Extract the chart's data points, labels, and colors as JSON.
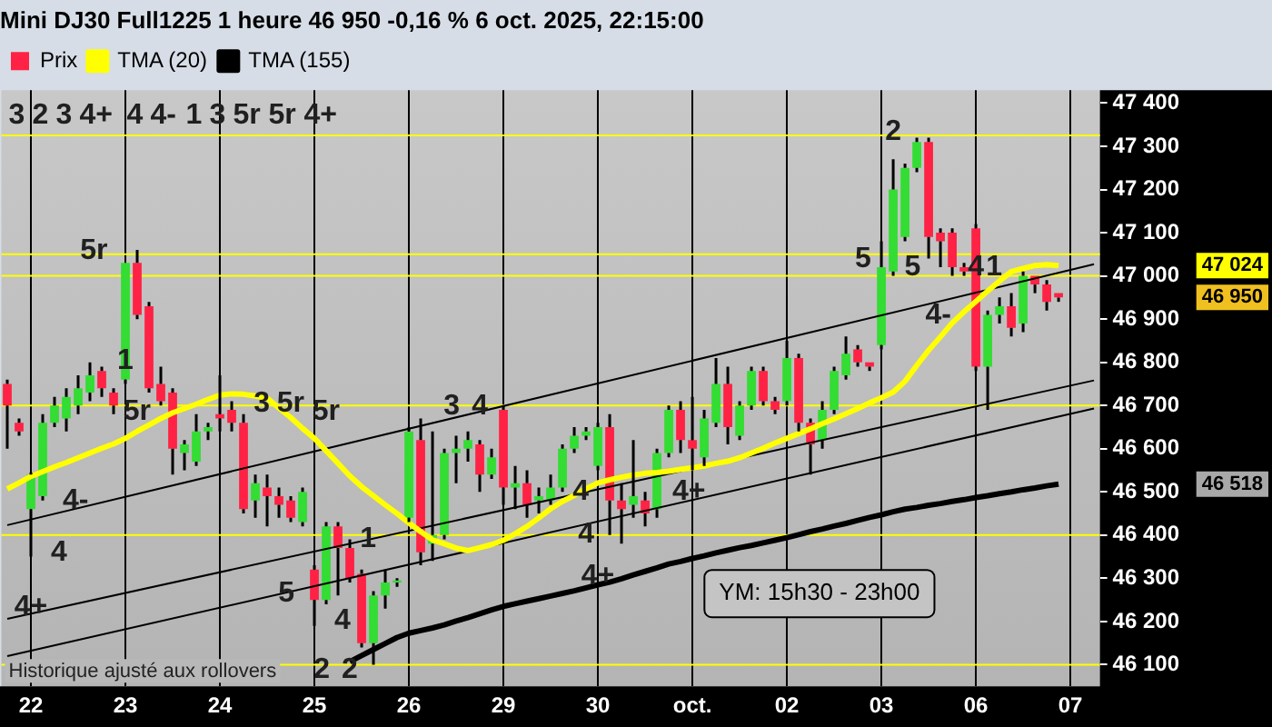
{
  "chart_data": {
    "type": "candlestick",
    "title": "Mini DJ30 Full1225 1 heure 46 950 -0,16 % 6 oct. 2025, 22:15:00",
    "categories": [
      null,
      null,
      "22",
      null,
      null,
      null,
      null,
      null,
      null,
      null,
      "23",
      null,
      null,
      null,
      null,
      null,
      null,
      null,
      "24",
      null,
      null,
      null,
      null,
      null,
      null,
      null,
      "25",
      null,
      null,
      null,
      null,
      null,
      null,
      null,
      "26",
      null,
      null,
      null,
      null,
      null,
      null,
      null,
      "29",
      null,
      null,
      null,
      null,
      null,
      null,
      null,
      "30",
      null,
      null,
      null,
      null,
      null,
      null,
      null,
      "oct.",
      null,
      null,
      null,
      null,
      null,
      null,
      null,
      "02",
      null,
      null,
      null,
      null,
      null,
      null,
      null,
      "03",
      null,
      null,
      null,
      null,
      null,
      null,
      null,
      "06",
      null,
      null,
      null,
      null,
      null,
      null,
      null,
      "07",
      null,
      null
    ],
    "ylim": [
      46050,
      47430
    ],
    "yticks": [
      {
        "value": 46100,
        "label": "46 100"
      },
      {
        "value": 46200,
        "label": "46 200"
      },
      {
        "value": 46300,
        "label": "46 300"
      },
      {
        "value": 46400,
        "label": "46 400"
      },
      {
        "value": 46500,
        "label": "46 500"
      },
      {
        "value": 46600,
        "label": "46 600"
      },
      {
        "value": 46700,
        "label": "46 700"
      },
      {
        "value": 46800,
        "label": "46 800"
      },
      {
        "value": 46900,
        "label": "46 900"
      },
      {
        "value": 47000,
        "label": "47 000"
      },
      {
        "value": 47100,
        "label": "47 100"
      },
      {
        "value": 47200,
        "label": "47 200"
      },
      {
        "value": 47300,
        "label": "47 300"
      },
      {
        "value": 47400,
        "label": "47 400"
      }
    ],
    "grid": "x",
    "legend": "top left",
    "series": [
      {
        "name": "Prix",
        "ohlc": [
          [
            46750,
            46760,
            46600,
            46700
          ],
          [
            46660,
            46670,
            46630,
            46640
          ],
          [
            46460,
            46545,
            46350,
            46540
          ],
          [
            46490,
            46680,
            46480,
            46660
          ],
          [
            46660,
            46720,
            46650,
            46700
          ],
          [
            46670,
            46740,
            46640,
            46720
          ],
          [
            46700,
            46770,
            46680,
            46740
          ],
          [
            46730,
            46800,
            46710,
            46770
          ],
          [
            46780,
            46790,
            46720,
            46740
          ],
          [
            46730,
            46740,
            46680,
            46700
          ],
          [
            46760,
            47030,
            46750,
            47030
          ],
          [
            47030,
            47060,
            46900,
            46910
          ],
          [
            46930,
            46940,
            46730,
            46740
          ],
          [
            46750,
            46790,
            46700,
            46710
          ],
          [
            46730,
            46740,
            46540,
            46600
          ],
          [
            46590,
            46620,
            46550,
            46610
          ],
          [
            46570,
            46680,
            46560,
            46640
          ],
          [
            46640,
            46660,
            46620,
            46650
          ],
          [
            46680,
            46770,
            46640,
            46670
          ],
          [
            46690,
            46710,
            46640,
            46660
          ],
          [
            46660,
            46680,
            46450,
            46460
          ],
          [
            46480,
            46540,
            46440,
            46520
          ],
          [
            46510,
            46540,
            46420,
            46490
          ],
          [
            46490,
            46510,
            46440,
            46470
          ],
          [
            46480,
            46490,
            46430,
            46440
          ],
          [
            46430,
            46510,
            46420,
            46500
          ],
          [
            46320,
            46330,
            46190,
            46250
          ],
          [
            46250,
            46430,
            46240,
            46420
          ],
          [
            46420,
            46430,
            46260,
            46370
          ],
          [
            46370,
            46390,
            46290,
            46300
          ],
          [
            46310,
            46320,
            46140,
            46150
          ],
          [
            46150,
            46270,
            46100,
            46260
          ],
          [
            46260,
            46320,
            46230,
            46290
          ],
          [
            46290,
            46300,
            46280,
            46295
          ],
          [
            46440,
            46650,
            46430,
            46640
          ],
          [
            46620,
            46670,
            46330,
            46360
          ],
          [
            46380,
            46640,
            46340,
            46400
          ],
          [
            46400,
            46600,
            46390,
            46590
          ],
          [
            46590,
            46630,
            46520,
            46600
          ],
          [
            46600,
            46640,
            46570,
            46620
          ],
          [
            46610,
            46620,
            46500,
            46540
          ],
          [
            46540,
            46600,
            46530,
            46580
          ],
          [
            46690,
            46700,
            46470,
            46510
          ],
          [
            46510,
            46560,
            46460,
            46520
          ],
          [
            46520,
            46550,
            46440,
            46470
          ],
          [
            46480,
            46510,
            46450,
            46490
          ],
          [
            46480,
            46540,
            46470,
            46510
          ],
          [
            46510,
            46610,
            46500,
            46600
          ],
          [
            46600,
            46650,
            46590,
            46630
          ],
          [
            46630,
            46650,
            46620,
            46640
          ],
          [
            46560,
            46660,
            46550,
            46650
          ],
          [
            46650,
            46680,
            46400,
            46480
          ],
          [
            46480,
            46520,
            46380,
            46460
          ],
          [
            46470,
            46620,
            46440,
            46490
          ],
          [
            46480,
            46500,
            46420,
            46450
          ],
          [
            46460,
            46600,
            46440,
            46590
          ],
          [
            46590,
            46700,
            46580,
            46690
          ],
          [
            46690,
            46710,
            46590,
            46620
          ],
          [
            46620,
            46720,
            46550,
            46600
          ],
          [
            46580,
            46690,
            46560,
            46670
          ],
          [
            46660,
            46810,
            46650,
            46750
          ],
          [
            46750,
            46790,
            46610,
            46650
          ],
          [
            46630,
            46710,
            46620,
            46700
          ],
          [
            46700,
            46790,
            46690,
            46780
          ],
          [
            46780,
            46790,
            46700,
            46710
          ],
          [
            46710,
            46720,
            46680,
            46690
          ],
          [
            46710,
            46850,
            46700,
            46810
          ],
          [
            46810,
            46820,
            46640,
            46660
          ],
          [
            46660,
            46670,
            46540,
            46610
          ],
          [
            46620,
            46710,
            46600,
            46690
          ],
          [
            46690,
            46790,
            46680,
            46780
          ],
          [
            46770,
            46860,
            46760,
            46820
          ],
          [
            46830,
            46840,
            46790,
            46800
          ],
          [
            46800,
            46800,
            46780,
            46790
          ],
          [
            46840,
            47080,
            46830,
            47020
          ],
          [
            47010,
            47270,
            47000,
            47200
          ],
          [
            47090,
            47260,
            47080,
            47250
          ],
          [
            47250,
            47320,
            47240,
            47310
          ],
          [
            47310,
            47320,
            47040,
            47090
          ],
          [
            47100,
            47110,
            47020,
            47080
          ],
          [
            47100,
            47110,
            47000,
            47020
          ],
          [
            47020,
            47030,
            47000,
            47010
          ],
          [
            47110,
            47120,
            46780,
            46790
          ],
          [
            46790,
            46920,
            46690,
            46910
          ],
          [
            46910,
            46950,
            46890,
            46930
          ],
          [
            46930,
            46960,
            46860,
            46880
          ],
          [
            46890,
            47010,
            46870,
            47000
          ],
          [
            47000,
            47000,
            46960,
            46980
          ],
          [
            46980,
            46990,
            46920,
            46940
          ],
          [
            46960,
            46960,
            46940,
            46950
          ],
          null,
          null,
          null
        ],
        "colors": [
          "#ff2244",
          "#ff2244",
          "#33dd33",
          "#33dd33",
          "#33dd33",
          "#33dd33",
          "#33dd33",
          "#33dd33",
          "#ff2244",
          "#ff2244",
          "#33dd33",
          "#ff2244",
          "#ff2244",
          "#ff2244",
          "#ff2244",
          "#33dd33",
          "#33dd33",
          "#33dd33",
          "#ff2244",
          "#ff2244",
          "#ff2244",
          "#33dd33",
          "#ff2244",
          "#ff2244",
          "#ff2244",
          "#33dd33",
          "#ff2244",
          "#33dd33",
          "#ff2244",
          "#ff2244",
          "#ff2244",
          "#33dd33",
          "#33dd33",
          "#33dd33",
          "#33dd33",
          "#ff2244",
          "#33dd33",
          "#33dd33",
          "#33dd33",
          "#33dd33",
          "#ff2244",
          "#33dd33",
          "#ff2244",
          "#33dd33",
          "#ff2244",
          "#33dd33",
          "#33dd33",
          "#33dd33",
          "#33dd33",
          "#33dd33",
          "#33dd33",
          "#ff2244",
          "#ff2244",
          "#33dd33",
          "#ff2244",
          "#33dd33",
          "#33dd33",
          "#ff2244",
          "#ff2244",
          "#33dd33",
          "#33dd33",
          "#ff2244",
          "#33dd33",
          "#33dd33",
          "#ff2244",
          "#ff2244",
          "#33dd33",
          "#ff2244",
          "#ff2244",
          "#33dd33",
          "#33dd33",
          "#33dd33",
          "#ff2244",
          "#ff2244",
          "#33dd33",
          "#33dd33",
          "#33dd33",
          "#33dd33",
          "#ff2244",
          "#ff2244",
          "#ff2244",
          "#ff2244",
          "#ff2244",
          "#33dd33",
          "#33dd33",
          "#ff2244",
          "#33dd33",
          "#ff2244",
          "#ff2244",
          "#ff2244",
          null,
          null,
          null
        ]
      },
      {
        "name": "TMA (20)",
        "type": "line",
        "color": "#ffff00",
        "values": [
          46507,
          46521,
          46536,
          46547,
          46558,
          46568,
          46579,
          46590,
          46601,
          46611,
          46624,
          46640,
          46655,
          46670,
          46683,
          46693,
          46703,
          46714,
          46724,
          46727,
          46726,
          46722,
          46717,
          46694,
          46672,
          46647,
          46624,
          46595,
          46566,
          46537,
          46512,
          46491,
          46470,
          46450,
          46428,
          46408,
          46389,
          46380,
          46370,
          46364,
          46371,
          46378,
          46388,
          46403,
          46420,
          46440,
          46461,
          46478,
          46492,
          46507,
          46521,
          46528,
          46534,
          46539,
          46543,
          46545,
          46548,
          46552,
          46556,
          46560,
          46566,
          46571,
          46579,
          46590,
          46601,
          46613,
          46624,
          46635,
          46646,
          46658,
          46669,
          46681,
          46693,
          46706,
          46718,
          46731,
          46756,
          46793,
          46828,
          46859,
          46891,
          46917,
          46941,
          46965,
          46988,
          47010,
          47017,
          47024,
          47026,
          47024,
          null,
          null,
          null
        ]
      },
      {
        "name": "TMA (155)",
        "type": "line",
        "color": "#000000",
        "values": [
          null,
          null,
          null,
          null,
          null,
          null,
          null,
          null,
          null,
          null,
          null,
          null,
          null,
          null,
          null,
          null,
          null,
          null,
          null,
          null,
          null,
          null,
          null,
          null,
          null,
          null,
          null,
          null,
          null,
          46107,
          46121,
          46135,
          46149,
          46163,
          46173,
          46179,
          46185,
          46192,
          46201,
          46209,
          46218,
          46227,
          46235,
          46241,
          46247,
          46253,
          46259,
          46265,
          46271,
          46278,
          46285,
          46291,
          46299,
          46308,
          46316,
          46324,
          46333,
          46339,
          46346,
          46352,
          46359,
          46365,
          46371,
          46376,
          46382,
          46388,
          46394,
          46401,
          46408,
          46414,
          46421,
          46427,
          46434,
          46441,
          46447,
          46454,
          46460,
          46464,
          46469,
          46473,
          46478,
          46482,
          46487,
          46491,
          46496,
          46500,
          46505,
          46509,
          46514,
          46518,
          null,
          null,
          null
        ]
      },
      {
        "type": "line",
        "color": "#000000",
        "values": [
          46423,
          null,
          null,
          null,
          null,
          null,
          null,
          null,
          null,
          null,
          null,
          null,
          null,
          null,
          null,
          null,
          null,
          null,
          null,
          null,
          null,
          null,
          null,
          null,
          null,
          null,
          null,
          null,
          null,
          null,
          null,
          null,
          null,
          null,
          null,
          null,
          null,
          null,
          null,
          null,
          null,
          null,
          null,
          null,
          null,
          null,
          null,
          null,
          null,
          null,
          null,
          null,
          null,
          null,
          null,
          null,
          null,
          null,
          null,
          null,
          null,
          null,
          null,
          null,
          null,
          null,
          null,
          null,
          null,
          null,
          null,
          null,
          null,
          null,
          null,
          null,
          null,
          null,
          null,
          null,
          null,
          null,
          null,
          null,
          null,
          null,
          null,
          null,
          null,
          null,
          null,
          null,
          47027
        ]
      },
      {
        "type": "line",
        "color": "#000000",
        "values": [
          46206,
          null,
          null,
          null,
          null,
          null,
          null,
          null,
          null,
          null,
          null,
          null,
          null,
          null,
          null,
          null,
          null,
          null,
          null,
          null,
          null,
          null,
          null,
          null,
          null,
          null,
          null,
          null,
          null,
          null,
          null,
          null,
          null,
          null,
          null,
          null,
          null,
          null,
          null,
          null,
          null,
          null,
          null,
          null,
          null,
          null,
          null,
          null,
          null,
          null,
          null,
          null,
          null,
          null,
          null,
          null,
          null,
          null,
          null,
          null,
          null,
          null,
          null,
          null,
          null,
          null,
          null,
          null,
          null,
          null,
          null,
          null,
          null,
          null,
          null,
          null,
          null,
          null,
          null,
          null,
          null,
          null,
          null,
          null,
          null,
          null,
          null,
          null,
          null,
          null,
          null,
          null,
          46758
        ]
      },
      {
        "type": "line",
        "color": "#000000",
        "values": [
          46120,
          null,
          null,
          null,
          null,
          null,
          null,
          null,
          null,
          null,
          null,
          null,
          null,
          null,
          null,
          null,
          null,
          null,
          null,
          null,
          null,
          null,
          null,
          null,
          null,
          null,
          null,
          null,
          null,
          null,
          null,
          null,
          null,
          null,
          null,
          null,
          null,
          null,
          null,
          null,
          null,
          null,
          null,
          null,
          null,
          null,
          null,
          null,
          null,
          null,
          null,
          null,
          null,
          null,
          null,
          null,
          null,
          null,
          null,
          null,
          null,
          null,
          null,
          null,
          null,
          null,
          null,
          null,
          null,
          null,
          null,
          null,
          null,
          null,
          null,
          null,
          null,
          null,
          null,
          null,
          null,
          null,
          null,
          null,
          null,
          null,
          null,
          null,
          null,
          null,
          null,
          null,
          46693
        ]
      }
    ],
    "ref_lines": [
      {
        "axis": "y",
        "value": 47325,
        "color": "#ffff00"
      },
      {
        "axis": "y",
        "value": 47050,
        "color": "#ffff00"
      },
      {
        "axis": "y",
        "value": 47000,
        "color": "#ffff00"
      },
      {
        "axis": "y",
        "value": 46700,
        "color": "#ffff00"
      },
      {
        "axis": "y",
        "value": 46400,
        "color": "#ffff00"
      },
      {
        "axis": "y",
        "value": 46100,
        "color": "#ffff00"
      }
    ],
    "annotations": [
      {
        "text": "5r",
        "y": 46685
      },
      {
        "text": "4-",
        "y": 46480
      },
      {
        "text": "4",
        "x": "22",
        "y": 46359
      },
      {
        "text": "4+",
        "x": "22",
        "y": 46233
      },
      {
        "text": "5",
        "y": 47039
      },
      {
        "text": "1",
        "x": "23",
        "y": 46803
      },
      {
        "text": "5",
        "y": 46265
      },
      {
        "text": "4",
        "x": "25",
        "y": 46202
      },
      {
        "text": "1",
        "y": 46390
      },
      {
        "text": "2",
        "y": 46088
      },
      {
        "text": "2",
        "y": 46088
      },
      {
        "text": "3",
        "y": 46705
      },
      {
        "text": "4",
        "y": 46500
      },
      {
        "text": "4",
        "y": 46402
      },
      {
        "text": "4+",
        "x": "30",
        "y": 46304
      },
      {
        "text": "5r",
        "y": 46705
      },
      {
        "text": "5",
        "y": 47019
      },
      {
        "text": "5r",
        "y": 47058
      },
      {
        "text": "2",
        "y": 47333
      },
      {
        "text": "1",
        "y": 47019
      },
      {
        "text": "4",
        "x": "06",
        "y": 47019
      },
      {
        "text": "4-",
        "x": "06",
        "y": 46909
      },
      {
        "text": "4",
        "y": 46697
      },
      {
        "text": "3",
        "y": 46697
      },
      {
        "text": "5r",
        "y": 46685
      },
      {
        "text": "4+",
        "y": 46500
      },
      "Historique ajusté aux rollovers",
      "YM: 15h30 - 23h00",
      "46 950",
      "47 024",
      "46 518",
      "3",
      "2",
      "3",
      "4+",
      "4",
      "4-",
      "1",
      "3",
      "5r",
      "5r",
      "4+"
    ]
  }
}
